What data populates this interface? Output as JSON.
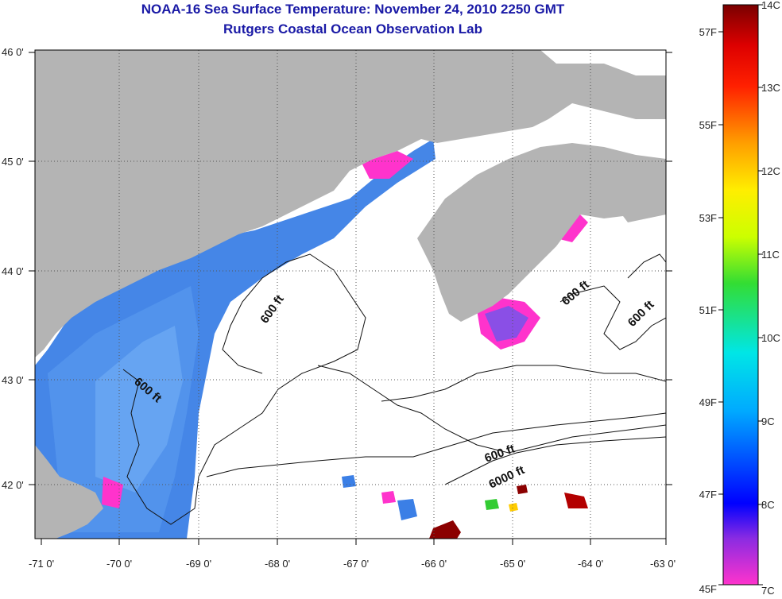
{
  "title": "NOAA-16 Sea Surface Temperature:  November 24, 2010 2250 GMT",
  "subtitle": "Rutgers Coastal Ocean Observation Lab",
  "map": {
    "lon_ticks": [
      "-71 0'",
      "-70 0'",
      "-69 0'",
      "-68 0'",
      "-67 0'",
      "-66 0'",
      "-65 0'",
      "-64 0'",
      "-63 0'"
    ],
    "lat_ticks": [
      "46 0'",
      "45 0'",
      "44 0'",
      "43 0'",
      "42 0'"
    ],
    "contour_labels": [
      "600 ft",
      "600 ft",
      "600 ft",
      "600 ft",
      "600 ft",
      "6000 ft"
    ],
    "colors": {
      "land": "#b4b4b4",
      "cloud": "#ffffff"
    }
  },
  "colorbar": {
    "celsius": [
      "14C",
      "13C",
      "12C",
      "11C",
      "10C",
      "9C",
      "8C",
      "7C"
    ],
    "fahrenheit": [
      "57F",
      "55F",
      "53F",
      "51F",
      "49F",
      "47F",
      "45F"
    ]
  }
}
